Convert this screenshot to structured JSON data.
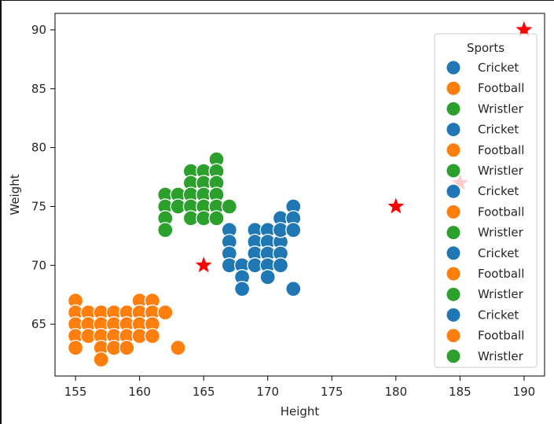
{
  "chart_data": {
    "type": "scatter",
    "title": "",
    "xlabel": "Height",
    "ylabel": "Weight",
    "xlim": [
      153.4,
      191.6
    ],
    "ylim": [
      60.6,
      91.4
    ],
    "xticks": [
      155,
      160,
      165,
      170,
      175,
      180,
      185,
      190
    ],
    "yticks": [
      65,
      70,
      75,
      80,
      85,
      90
    ],
    "grid": false,
    "legend": {
      "title": "Sports",
      "placement": "upper-right",
      "entries": [
        {
          "label": "Cricket",
          "color": "#1f77b4"
        },
        {
          "label": "Football",
          "color": "#ff7f0e"
        },
        {
          "label": "Wristler",
          "color": "#2ca02c"
        },
        {
          "label": "Cricket",
          "color": "#1f77b4"
        },
        {
          "label": "Football",
          "color": "#ff7f0e"
        },
        {
          "label": "Wristler",
          "color": "#2ca02c"
        },
        {
          "label": "Cricket",
          "color": "#1f77b4"
        },
        {
          "label": "Football",
          "color": "#ff7f0e"
        },
        {
          "label": "Wristler",
          "color": "#2ca02c"
        },
        {
          "label": "Cricket",
          "color": "#1f77b4"
        },
        {
          "label": "Football",
          "color": "#ff7f0e"
        },
        {
          "label": "Wristler",
          "color": "#2ca02c"
        },
        {
          "label": "Cricket",
          "color": "#1f77b4"
        },
        {
          "label": "Football",
          "color": "#ff7f0e"
        },
        {
          "label": "Wristler",
          "color": "#2ca02c"
        }
      ]
    },
    "series": [
      {
        "name": "Cricket",
        "color": "#1f77b4",
        "points": [
          [
            167,
            73
          ],
          [
            167,
            72
          ],
          [
            167,
            71
          ],
          [
            167,
            70
          ],
          [
            168,
            70
          ],
          [
            168,
            69
          ],
          [
            168,
            68
          ],
          [
            169,
            73
          ],
          [
            169,
            72
          ],
          [
            169,
            71
          ],
          [
            169,
            70
          ],
          [
            170,
            73
          ],
          [
            170,
            72
          ],
          [
            170,
            71
          ],
          [
            170,
            70
          ],
          [
            170,
            69
          ],
          [
            171,
            74
          ],
          [
            171,
            72
          ],
          [
            171,
            71
          ],
          [
            171,
            70
          ],
          [
            171,
            73
          ],
          [
            172,
            75
          ],
          [
            172,
            74
          ],
          [
            172,
            73
          ],
          [
            172,
            68
          ]
        ]
      },
      {
        "name": "Football",
        "color": "#ff7f0e",
        "points": [
          [
            155,
            67
          ],
          [
            155,
            66
          ],
          [
            155,
            65
          ],
          [
            155,
            64
          ],
          [
            155,
            63
          ],
          [
            156,
            66
          ],
          [
            156,
            65
          ],
          [
            156,
            64
          ],
          [
            157,
            66
          ],
          [
            157,
            65
          ],
          [
            157,
            64
          ],
          [
            157,
            63
          ],
          [
            157,
            62
          ],
          [
            158,
            66
          ],
          [
            158,
            65
          ],
          [
            158,
            64
          ],
          [
            158,
            63
          ],
          [
            159,
            66
          ],
          [
            159,
            65
          ],
          [
            159,
            64
          ],
          [
            159,
            63
          ],
          [
            160,
            67
          ],
          [
            160,
            66
          ],
          [
            160,
            65
          ],
          [
            160,
            64
          ],
          [
            161,
            67
          ],
          [
            161,
            66
          ],
          [
            161,
            65
          ],
          [
            161,
            64
          ],
          [
            162,
            66
          ],
          [
            163,
            63
          ]
        ]
      },
      {
        "name": "Wristler",
        "color": "#2ca02c",
        "points": [
          [
            162,
            76
          ],
          [
            162,
            75
          ],
          [
            162,
            74
          ],
          [
            162,
            73
          ],
          [
            163,
            76
          ],
          [
            163,
            75
          ],
          [
            164,
            78
          ],
          [
            164,
            77
          ],
          [
            164,
            76
          ],
          [
            164,
            75
          ],
          [
            164,
            74
          ],
          [
            165,
            78
          ],
          [
            165,
            77
          ],
          [
            165,
            76
          ],
          [
            165,
            75
          ],
          [
            165,
            74
          ],
          [
            166,
            79
          ],
          [
            166,
            78
          ],
          [
            166,
            77
          ],
          [
            166,
            76
          ],
          [
            166,
            75
          ],
          [
            166,
            74
          ],
          [
            167,
            75
          ]
        ]
      }
    ],
    "highlight_points": {
      "color": "#ff0000",
      "marker": "star",
      "points": [
        [
          165,
          70
        ],
        [
          180,
          75
        ],
        [
          185,
          77
        ],
        [
          190,
          90
        ]
      ]
    }
  }
}
